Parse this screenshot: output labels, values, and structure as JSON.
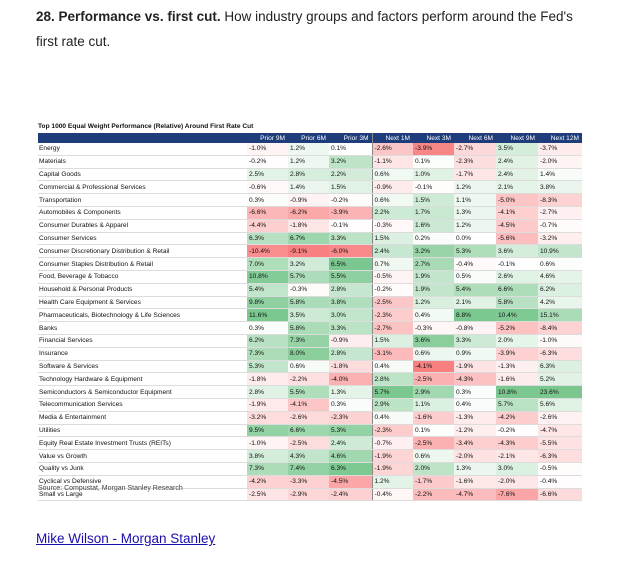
{
  "heading": {
    "number_title": "28. Performance vs. first cut.",
    "text": "How industry groups and factors perform around the Fed's first rate cut."
  },
  "table": {
    "title": "Top 1000 Equal Weight Performance (Relative) Around First Rate Cut",
    "columns": [
      "Prior 9M",
      "Prior 6M",
      "Prior 3M",
      "Next 1M",
      "Next 3M",
      "Next 6M",
      "Next 9M",
      "Next 12M"
    ],
    "rows": [
      {
        "label": "Energy",
        "values": [
          "-1.0%",
          "1.2%",
          "0.1%",
          "-2.6%",
          "-3.9%",
          "-2.7%",
          "3.5%",
          "-3.7%"
        ]
      },
      {
        "label": "Materials",
        "values": [
          "-0.2%",
          "1.2%",
          "3.2%",
          "-1.1%",
          "0.1%",
          "-2.3%",
          "2.4%",
          "-2.0%"
        ]
      },
      {
        "label": "Capital Goods",
        "values": [
          "2.5%",
          "2.8%",
          "2.2%",
          "0.6%",
          "1.0%",
          "-1.7%",
          "2.4%",
          "1.4%"
        ]
      },
      {
        "label": "Commercial & Professional Services",
        "values": [
          "-0.6%",
          "1.4%",
          "1.5%",
          "-0.9%",
          "-0.1%",
          "1.2%",
          "2.1%",
          "3.8%"
        ]
      },
      {
        "label": "Transportation",
        "values": [
          "0.3%",
          "-0.9%",
          "-0.2%",
          "0.6%",
          "1.5%",
          "1.1%",
          "-5.0%",
          "-8.3%"
        ]
      },
      {
        "label": "Automobiles & Components",
        "values": [
          "-6.6%",
          "-6.2%",
          "-3.9%",
          "2.2%",
          "1.7%",
          "1.3%",
          "-4.1%",
          "-2.7%"
        ]
      },
      {
        "label": "Consumer Durables & Apparel",
        "values": [
          "-4.4%",
          "-1.8%",
          "-0.1%",
          "-0.3%",
          "1.6%",
          "1.2%",
          "-4.5%",
          "-0.7%"
        ]
      },
      {
        "label": "Consumer Services",
        "values": [
          "6.3%",
          "6.7%",
          "3.3%",
          "1.5%",
          "0.2%",
          "0.0%",
          "-5.6%",
          "-3.2%"
        ]
      },
      {
        "label": "Consumer Discretionary Distribution & Retail",
        "values": [
          "-10.4%",
          "-9.1%",
          "-6.0%",
          "2.4%",
          "3.2%",
          "5.3%",
          "3.6%",
          "10.9%"
        ]
      },
      {
        "label": "Consumer Staples Distribution & Retail",
        "values": [
          "7.0%",
          "3.2%",
          "6.5%",
          "0.7%",
          "2.7%",
          "-0.4%",
          "-0.1%",
          "0.6%"
        ]
      },
      {
        "label": "Food, Beverage & Tobacco",
        "values": [
          "10.8%",
          "5.7%",
          "5.5%",
          "-0.5%",
          "1.9%",
          "0.5%",
          "2.6%",
          "4.6%"
        ]
      },
      {
        "label": "Household & Personal Products",
        "values": [
          "5.4%",
          "-0.3%",
          "2.8%",
          "-0.2%",
          "1.9%",
          "5.4%",
          "6.6%",
          "6.2%"
        ]
      },
      {
        "label": "Health Care Equipment & Services",
        "values": [
          "9.8%",
          "5.8%",
          "3.8%",
          "-2.5%",
          "1.2%",
          "2.1%",
          "5.8%",
          "4.2%"
        ]
      },
      {
        "label": "Pharmaceuticals, Biotechnology & Life Sciences",
        "values": [
          "11.6%",
          "3.5%",
          "3.0%",
          "-2.3%",
          "0.4%",
          "8.8%",
          "10.4%",
          "15.1%"
        ]
      },
      {
        "label": "Banks",
        "values": [
          "0.3%",
          "5.8%",
          "3.3%",
          "-2.7%",
          "-0.3%",
          "-0.8%",
          "-5.2%",
          "-8.4%"
        ]
      },
      {
        "label": "Financial Services",
        "values": [
          "6.2%",
          "7.3%",
          "-0.9%",
          "1.5%",
          "3.6%",
          "3.3%",
          "2.0%",
          "-1.0%"
        ]
      },
      {
        "label": "Insurance",
        "values": [
          "7.3%",
          "8.0%",
          "2.8%",
          "-3.1%",
          "0.6%",
          "0.9%",
          "-3.9%",
          "-6.3%"
        ]
      },
      {
        "label": "Software & Services",
        "values": [
          "5.3%",
          "0.6%",
          "-1.8%",
          "0.4%",
          "-4.1%",
          "-1.9%",
          "-1.3%",
          "6.3%"
        ]
      },
      {
        "label": "Technology Hardware & Equipment",
        "values": [
          "-1.8%",
          "-2.2%",
          "-4.0%",
          "2.8%",
          "-2.5%",
          "-4.3%",
          "-1.6%",
          "5.2%"
        ]
      },
      {
        "label": "Semiconductors & Semiconductor Equipment",
        "values": [
          "2.8%",
          "5.5%",
          "1.3%",
          "5.7%",
          "2.9%",
          "0.3%",
          "10.8%",
          "23.6%"
        ]
      },
      {
        "label": "Telecommunication Services",
        "values": [
          "-1.9%",
          "-4.1%",
          "0.3%",
          "2.9%",
          "1.1%",
          "0.4%",
          "5.7%",
          "5.6%"
        ]
      },
      {
        "label": "Media & Entertainment",
        "values": [
          "-3.2%",
          "-2.6%",
          "-2.3%",
          "0.4%",
          "-1.6%",
          "-1.3%",
          "-4.2%",
          "-2.6%"
        ]
      },
      {
        "label": "Utilities",
        "values": [
          "9.5%",
          "6.6%",
          "5.3%",
          "-2.3%",
          "0.1%",
          "-1.2%",
          "-0.2%",
          "-4.7%"
        ]
      },
      {
        "label": "Equity Real Estate Investment Trusts (REITs)",
        "values": [
          "-1.0%",
          "-2.5%",
          "2.4%",
          "-0.7%",
          "-2.5%",
          "-3.4%",
          "-4.3%",
          "-5.5%"
        ]
      },
      {
        "label": "Value vs Growth",
        "values": [
          "3.8%",
          "4.3%",
          "4.6%",
          "-1.9%",
          "0.6%",
          "-2.0%",
          "-2.1%",
          "-6.3%"
        ]
      },
      {
        "label": "Quality vs Junk",
        "values": [
          "7.3%",
          "7.4%",
          "6.3%",
          "-1.9%",
          "2.0%",
          "1.3%",
          "3.0%",
          "-0.5%"
        ]
      },
      {
        "label": "Cyclical vs Defensive",
        "values": [
          "-4.2%",
          "-3.3%",
          "-4.5%",
          "1.2%",
          "-1.7%",
          "-1.6%",
          "-2.0%",
          "-0.4%"
        ]
      },
      {
        "label": "Small vs Large",
        "values": [
          "-2.5%",
          "-2.9%",
          "-2.4%",
          "-0.4%",
          "-2.2%",
          "-4.7%",
          "-7.6%",
          "-6.6%"
        ]
      }
    ],
    "group_breaks": [
      5,
      9,
      12,
      14,
      17,
      20,
      22,
      23,
      24
    ],
    "colors": {
      "header_bg": "#1f3d7a",
      "positive": "#63be7b",
      "negative": "#f8696b",
      "neutral": "#ffffff"
    }
  },
  "source": "Source: Compustat, Morgan Stanley Research",
  "author_link": "Mike Wilson - Morgan Stanley"
}
